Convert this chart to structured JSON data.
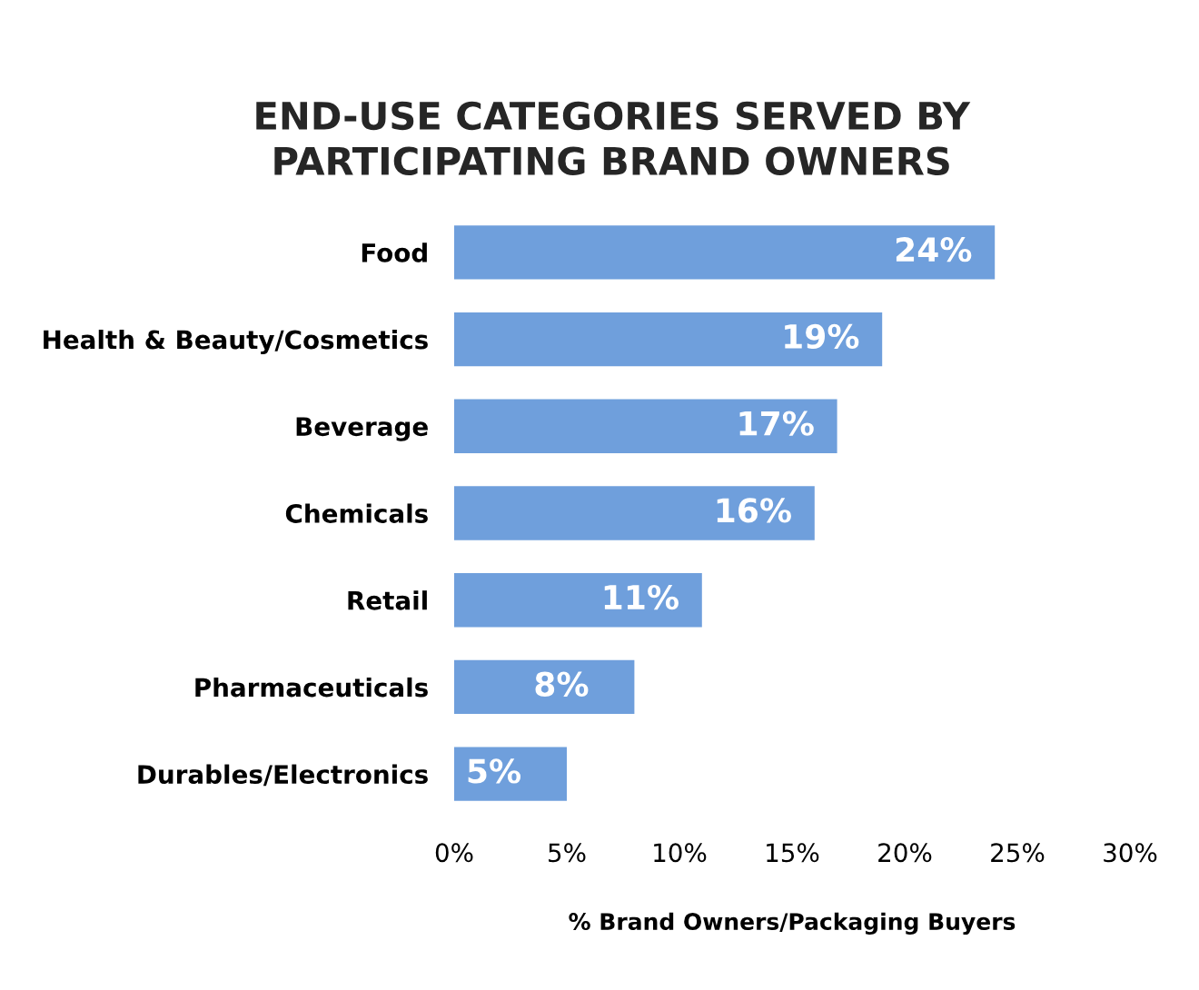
{
  "chart_data": {
    "type": "bar",
    "orientation": "horizontal",
    "title": "END-USE CATEGORIES SERVED BY\nPARTICIPATING BRAND OWNERS",
    "xlabel": "% Brand Owners/Packaging Buyers",
    "categories": [
      "Food",
      "Health & Beauty/Cosmetics",
      "Beverage",
      "Chemicals",
      "Retail",
      "Pharmaceuticals",
      "Durables/Electronics"
    ],
    "values": [
      24,
      19,
      17,
      16,
      11,
      8,
      5
    ],
    "value_labels": [
      "24%",
      "19%",
      "17%",
      "16%",
      "11%",
      "8%",
      "5%"
    ],
    "color": "#6f9fdc",
    "xlim": [
      0,
      30
    ],
    "xticks": [
      {
        "value": 0,
        "label": "0%"
      },
      {
        "value": 5,
        "label": "5%"
      },
      {
        "value": 10,
        "label": "10%"
      },
      {
        "value": 15,
        "label": "15%"
      },
      {
        "value": 20,
        "label": "20%"
      },
      {
        "value": 25,
        "label": "25%"
      },
      {
        "value": 30,
        "label": "30%"
      }
    ],
    "grid": false,
    "legend": false
  }
}
